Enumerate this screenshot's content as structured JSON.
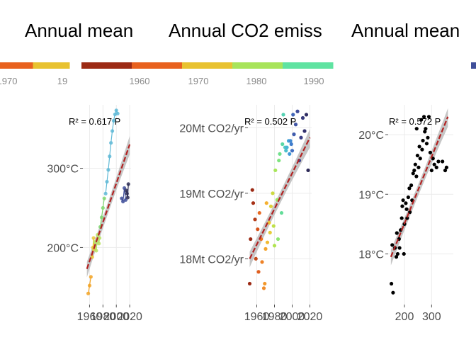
{
  "chart_data": [
    {
      "type": "scatter",
      "title": "Annual mean",
      "colorbar": {
        "ticks": [
          "1970",
          "19"
        ],
        "colors": [
          "#e8611e",
          "#e8c230"
        ]
      },
      "annotation": "R² = 0.617 P",
      "xlim": [
        1950,
        2022
      ],
      "x_ticks": [
        1960,
        1980,
        2000,
        2020
      ],
      "y_ticks": [
        {
          "v": 200,
          "label": "200°C"
        },
        {
          "v": 300,
          "label": "300°C"
        }
      ],
      "ylim": [
        128,
        380
      ],
      "fit": {
        "x": [
          1956,
          2020
        ],
        "y": [
          173,
          330
        ]
      },
      "series": [
        {
          "color": "#f2a324",
          "x": [
            1958,
            1960,
            1962
          ],
          "y": [
            142,
            152,
            163
          ]
        },
        {
          "color": "#e7c93a",
          "x": [
            1964,
            1965,
            1966,
            1967
          ],
          "y": [
            188,
            200,
            212,
            198
          ]
        },
        {
          "color": "#b8e264",
          "x": [
            1968,
            1970,
            1972,
            1974,
            1975
          ],
          "y": [
            207,
            196,
            216,
            205,
            212
          ]
        },
        {
          "color": "#7fd770",
          "x": [
            1976,
            1978,
            1980,
            1982
          ],
          "y": [
            226,
            238,
            250,
            262
          ]
        },
        {
          "color": "#5fb9d6",
          "x": [
            1984,
            1986,
            1988,
            1990,
            1992,
            1994,
            1996,
            1998,
            2000,
            2002
          ],
          "y": [
            268,
            283,
            298,
            315,
            332,
            347,
            360,
            368,
            373,
            369
          ]
        },
        {
          "color": "#3f4f9a",
          "x": [
            2008,
            2010,
            2012,
            2014
          ],
          "y": [
            262,
            258,
            275,
            260
          ]
        },
        {
          "color": "#2d2d55",
          "x": [
            2015,
            2016,
            2017,
            2018
          ],
          "y": [
            272,
            268,
            263,
            280
          ]
        }
      ]
    },
    {
      "type": "scatter",
      "title": "Annual CO2 emiss",
      "colorbar": {
        "ticks": [
          "1960",
          "1970",
          "1980",
          "1990"
        ],
        "colors": [
          "#9c2a14",
          "#e8611e",
          "#e8c230",
          "#a8e45a",
          "#5fe3a1"
        ]
      },
      "annotation": "R² = 0.502 P",
      "xlim": [
        1950,
        2022
      ],
      "x_ticks": [
        1960,
        1980,
        2000,
        2020
      ],
      "y_ticks": [
        {
          "v": 18,
          "label": "18Mt CO2/yr"
        },
        {
          "v": 19,
          "label": "19Mt CO2/yr"
        },
        {
          "v": 20,
          "label": "20Mt CO2/yr"
        }
      ],
      "ylim": [
        17.3,
        20.35
      ],
      "fit": {
        "x": [
          1952,
          2020
        ],
        "y": [
          18.0,
          19.85
        ]
      },
      "points": [
        {
          "x": 1952,
          "y": 17.62,
          "c": "#9c2a14"
        },
        {
          "x": 1953,
          "y": 18.3,
          "c": "#9c2a14"
        },
        {
          "x": 1955,
          "y": 19.05,
          "c": "#9c2a14"
        },
        {
          "x": 1956,
          "y": 18.85,
          "c": "#a63016"
        },
        {
          "x": 1958,
          "y": 18.6,
          "c": "#b53c18"
        },
        {
          "x": 1959,
          "y": 18.0,
          "c": "#c24a1a"
        },
        {
          "x": 1961,
          "y": 18.45,
          "c": "#d6541c"
        },
        {
          "x": 1962,
          "y": 17.8,
          "c": "#e06020"
        },
        {
          "x": 1963,
          "y": 18.7,
          "c": "#e66a22"
        },
        {
          "x": 1965,
          "y": 18.3,
          "c": "#ea7524"
        },
        {
          "x": 1966,
          "y": 17.95,
          "c": "#ee8226"
        },
        {
          "x": 1968,
          "y": 17.55,
          "c": "#f08c2a"
        },
        {
          "x": 1969,
          "y": 17.62,
          "c": "#f2982c"
        },
        {
          "x": 1970,
          "y": 18.15,
          "c": "#f4a52e"
        },
        {
          "x": 1971,
          "y": 18.85,
          "c": "#f5b030"
        },
        {
          "x": 1972,
          "y": 18.25,
          "c": "#f2bb32"
        },
        {
          "x": 1974,
          "y": 18.55,
          "c": "#ecc535"
        },
        {
          "x": 1975,
          "y": 18.4,
          "c": "#e6cc38"
        },
        {
          "x": 1976,
          "y": 18.8,
          "c": "#ddd33c"
        },
        {
          "x": 1978,
          "y": 19.0,
          "c": "#ccd940"
        },
        {
          "x": 1979,
          "y": 18.5,
          "c": "#bfe048"
        },
        {
          "x": 1980,
          "y": 18.2,
          "c": "#b0e450"
        },
        {
          "x": 1981,
          "y": 19.35,
          "c": "#a8e65a"
        },
        {
          "x": 1983,
          "y": 18.9,
          "c": "#9ae666"
        },
        {
          "x": 1984,
          "y": 18.3,
          "c": "#8ce672"
        },
        {
          "x": 1985,
          "y": 19.5,
          "c": "#7ee47e"
        },
        {
          "x": 1986,
          "y": 19.6,
          "c": "#70e08c"
        },
        {
          "x": 1988,
          "y": 18.7,
          "c": "#62dc98"
        },
        {
          "x": 1989,
          "y": 19.75,
          "c": "#5ad8a6"
        },
        {
          "x": 1990,
          "y": 20.2,
          "c": "#55d2b4"
        },
        {
          "x": 1992,
          "y": 19.7,
          "c": "#50cac2"
        },
        {
          "x": 1993,
          "y": 19.65,
          "c": "#4cc0cc"
        },
        {
          "x": 1994,
          "y": 19.7,
          "c": "#48b4d4"
        },
        {
          "x": 1996,
          "y": 19.8,
          "c": "#44a6d8"
        },
        {
          "x": 1997,
          "y": 19.6,
          "c": "#4298d8"
        },
        {
          "x": 1998,
          "y": 19.8,
          "c": "#418ad4"
        },
        {
          "x": 1999,
          "y": 19.75,
          "c": "#407ccc"
        },
        {
          "x": 2000,
          "y": 19.65,
          "c": "#4070c2"
        },
        {
          "x": 2001,
          "y": 20.2,
          "c": "#4066b8"
        },
        {
          "x": 2002,
          "y": 19.9,
          "c": "#405cae"
        },
        {
          "x": 2004,
          "y": 20.05,
          "c": "#3f54a4"
        },
        {
          "x": 2006,
          "y": 20.25,
          "c": "#3e4c9a"
        },
        {
          "x": 2008,
          "y": 19.5,
          "c": "#3c4490"
        },
        {
          "x": 2010,
          "y": 19.85,
          "c": "#3a3e86"
        },
        {
          "x": 2012,
          "y": 20.15,
          "c": "#36387a"
        },
        {
          "x": 2014,
          "y": 19.95,
          "c": "#33326e"
        },
        {
          "x": 2016,
          "y": 20.2,
          "c": "#302d62"
        },
        {
          "x": 2018,
          "y": 19.35,
          "c": "#2d2a58"
        }
      ]
    },
    {
      "type": "scatter",
      "title": "Annual mean",
      "colorbar": {
        "ticks": [],
        "colors": [
          "#3f4f9a"
        ]
      },
      "annotation": "R² = 0.572 P",
      "xlim": [
        140,
        380
      ],
      "x_ticks": [
        200,
        300
      ],
      "y_ticks": [
        {
          "v": 18,
          "label": "18°C"
        },
        {
          "v": 19,
          "label": "19°C"
        },
        {
          "v": 20,
          "label": "20°C"
        }
      ],
      "ylim": [
        17.15,
        20.5
      ],
      "fit": {
        "x": [
          150,
          360
        ],
        "y": [
          17.95,
          20.3
        ]
      },
      "point_color": "#000000",
      "points": [
        [
          152,
          17.5
        ],
        [
          158,
          17.35
        ],
        [
          155,
          18.15
        ],
        [
          165,
          18.1
        ],
        [
          170,
          17.95
        ],
        [
          175,
          18.0
        ],
        [
          180,
          18.25
        ],
        [
          172,
          18.35
        ],
        [
          182,
          18.1
        ],
        [
          186,
          18.4
        ],
        [
          190,
          18.6
        ],
        [
          192,
          18.8
        ],
        [
          195,
          18.9
        ],
        [
          198,
          18.0
        ],
        [
          200,
          18.5
        ],
        [
          205,
          18.85
        ],
        [
          208,
          18.75
        ],
        [
          210,
          18.6
        ],
        [
          214,
          18.95
        ],
        [
          218,
          19.1
        ],
        [
          220,
          18.7
        ],
        [
          225,
          19.15
        ],
        [
          228,
          18.9
        ],
        [
          232,
          19.35
        ],
        [
          236,
          19.4
        ],
        [
          240,
          19.5
        ],
        [
          244,
          19.3
        ],
        [
          248,
          19.65
        ],
        [
          252,
          19.45
        ],
        [
          255,
          19.8
        ],
        [
          258,
          19.6
        ],
        [
          262,
          20.25
        ],
        [
          265,
          19.75
        ],
        [
          268,
          19.9
        ],
        [
          272,
          20.3
        ],
        [
          275,
          20.05
        ],
        [
          278,
          20.1
        ],
        [
          282,
          19.85
        ],
        [
          286,
          19.95
        ],
        [
          290,
          20.3
        ],
        [
          295,
          19.7
        ],
        [
          300,
          19.4
        ],
        [
          305,
          19.6
        ],
        [
          310,
          19.5
        ],
        [
          318,
          19.45
        ],
        [
          325,
          19.55
        ],
        [
          340,
          19.55
        ],
        [
          350,
          19.4
        ],
        [
          355,
          19.45
        ],
        [
          245,
          20.1
        ]
      ]
    }
  ]
}
